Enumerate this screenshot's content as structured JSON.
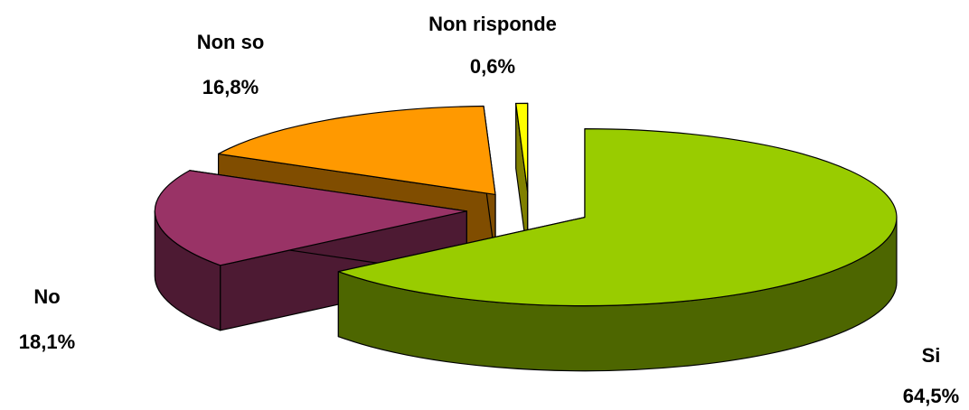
{
  "chart_data": {
    "type": "pie",
    "categories": [
      "Si",
      "No",
      "Non so",
      "Non risponde"
    ],
    "values": [
      64.5,
      18.1,
      16.8,
      0.6
    ],
    "value_labels": [
      "64,5%",
      "18,1%",
      "16,8%",
      "0,6%"
    ],
    "colors": [
      "#99cc00",
      "#993366",
      "#ff9900",
      "#ffff00"
    ],
    "three_d": true,
    "exploded": true
  }
}
